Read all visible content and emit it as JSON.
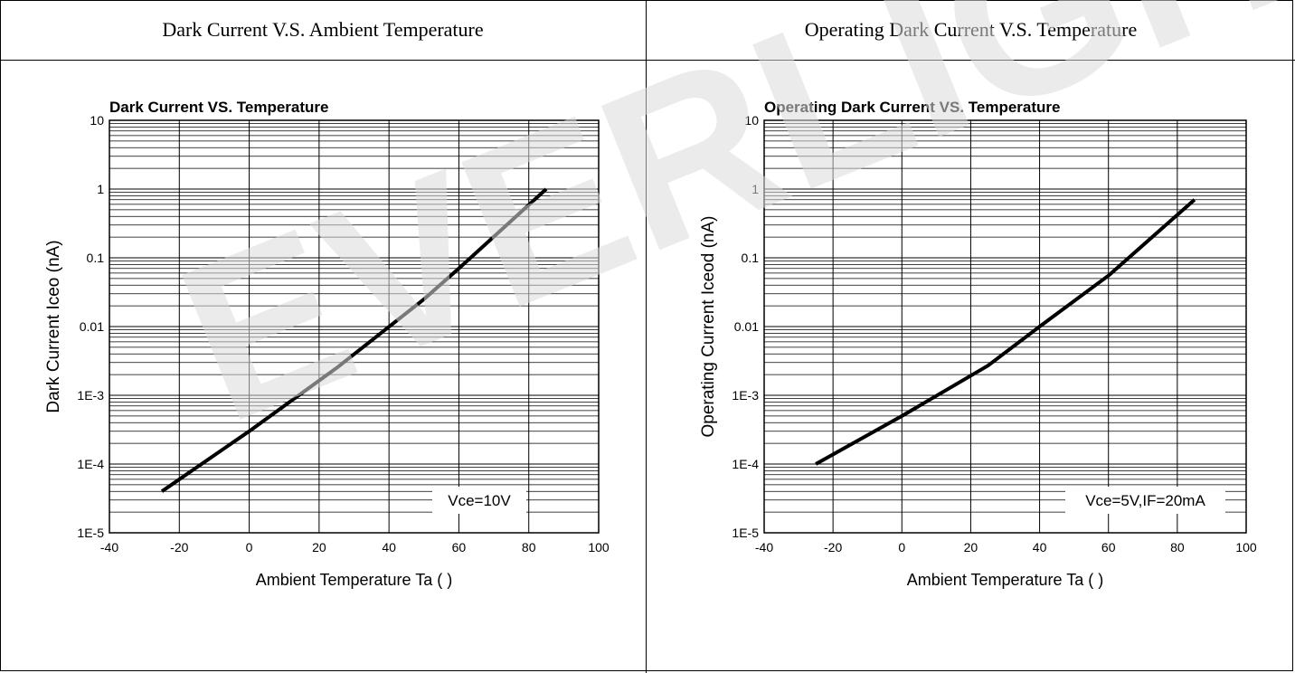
{
  "panels": [
    {
      "header": "Dark Current V.S. Ambient Temperature"
    },
    {
      "header": "Operating Dark Current V.S. Temperature"
    }
  ],
  "watermark": "EVERLIGHT",
  "chart_data": [
    {
      "type": "line",
      "title": "Dark Current VS. Temperature",
      "xlabel": "Ambient Temperature Ta (   )",
      "ylabel": "Dark Current Iceo (nA)",
      "xlim": [
        -40,
        100
      ],
      "ylim": [
        1e-05,
        10
      ],
      "yscale": "log",
      "grid": true,
      "xticks": [
        -40,
        -20,
        0,
        20,
        40,
        60,
        80,
        100
      ],
      "xtick_labels": [
        "-40",
        "-20",
        "0",
        "20",
        "40",
        "60",
        "80",
        "100"
      ],
      "yticks": [
        1e-05,
        0.0001,
        0.001,
        0.01,
        0.1,
        1,
        10
      ],
      "ytick_labels": [
        "1E-5",
        "1E-4",
        "1E-3",
        "0.01",
        "0.1",
        "1",
        "10"
      ],
      "annotation": "Vce=10V",
      "series": [
        {
          "x": [
            -25,
            0,
            25,
            50,
            60,
            85
          ],
          "y": [
            4e-05,
            0.0003,
            0.0025,
            0.025,
            0.07,
            1.0
          ]
        }
      ]
    },
    {
      "type": "line",
      "title": "Operating Dark Current VS. Temperature",
      "xlabel": "Ambient Temperature Ta (   )",
      "ylabel": "Operating Current Iceod (nA)",
      "xlim": [
        -40,
        100
      ],
      "ylim": [
        1e-05,
        10
      ],
      "yscale": "log",
      "grid": true,
      "xticks": [
        -40,
        -20,
        0,
        20,
        40,
        60,
        80,
        100
      ],
      "xtick_labels": [
        "-40",
        "-20",
        "0",
        "20",
        "40",
        "60",
        "80",
        "100"
      ],
      "yticks": [
        1e-05,
        0.0001,
        0.001,
        0.01,
        0.1,
        1,
        10
      ],
      "ytick_labels": [
        "1E-5",
        "1E-4",
        "1E-3",
        "0.01",
        "0.1",
        "1",
        "10"
      ],
      "annotation": "Vce=5V,IF=20mA",
      "series": [
        {
          "x": [
            -25,
            0,
            25,
            40,
            60,
            85
          ],
          "y": [
            0.0001,
            0.0005,
            0.0027,
            0.01,
            0.055,
            0.7
          ]
        }
      ]
    }
  ]
}
